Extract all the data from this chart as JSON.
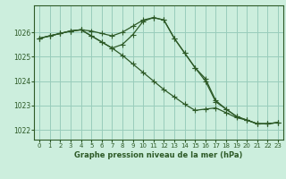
{
  "bg_color": "#cceedd",
  "grid_color": "#99ccbb",
  "line_color": "#2d5a27",
  "title": "Graphe pression niveau de la mer (hPa)",
  "xlim": [
    -0.5,
    23.5
  ],
  "ylim": [
    1021.6,
    1027.1
  ],
  "yticks": [
    1022,
    1023,
    1024,
    1025,
    1026
  ],
  "xticks": [
    0,
    1,
    2,
    3,
    4,
    5,
    6,
    7,
    8,
    9,
    10,
    11,
    12,
    13,
    14,
    15,
    16,
    17,
    18,
    19,
    20,
    21,
    22,
    23
  ],
  "series1_x": [
    0,
    1,
    2,
    3,
    4,
    5,
    6,
    7,
    8,
    9,
    10,
    11,
    12,
    13,
    14,
    15,
    16,
    17,
    18,
    19,
    20,
    21,
    22,
    23
  ],
  "series1_y": [
    1025.75,
    1025.85,
    1025.95,
    1026.05,
    1026.1,
    1026.05,
    1025.95,
    1025.85,
    1026.0,
    1026.25,
    1026.5,
    1026.6,
    1026.5,
    1025.75,
    1025.15,
    1024.55,
    1024.1,
    1023.2,
    1022.85,
    1022.55,
    1022.4,
    1022.25,
    1022.25,
    1022.3
  ],
  "series2_x": [
    0,
    1,
    2,
    3,
    4,
    5,
    6,
    7,
    8,
    9,
    10,
    11,
    12,
    13,
    14,
    15,
    16,
    17,
    18,
    19,
    20,
    21,
    22,
    23
  ],
  "series2_y": [
    1025.75,
    1025.85,
    1025.95,
    1026.05,
    1026.1,
    1025.85,
    1025.6,
    1025.35,
    1025.05,
    1024.7,
    1024.35,
    1024.0,
    1023.65,
    1023.35,
    1023.05,
    1022.8,
    1022.85,
    1022.9,
    1022.7,
    1022.5,
    1022.4,
    1022.25,
    1022.25,
    1022.3
  ],
  "series3_x": [
    0,
    1,
    2,
    3,
    4,
    5,
    6,
    7,
    8,
    9,
    10,
    11,
    12,
    13,
    14,
    15,
    16,
    17,
    18,
    19,
    20,
    21,
    22,
    23
  ],
  "series3_y": [
    1025.75,
    1025.85,
    1025.95,
    1026.05,
    1026.1,
    1025.85,
    1025.6,
    1025.35,
    1025.5,
    1025.9,
    1026.45,
    1026.6,
    1026.5,
    1025.75,
    1025.15,
    1024.55,
    1024.0,
    1023.15,
    1022.85,
    1022.55,
    1022.4,
    1022.25,
    1022.25,
    1022.3
  ]
}
